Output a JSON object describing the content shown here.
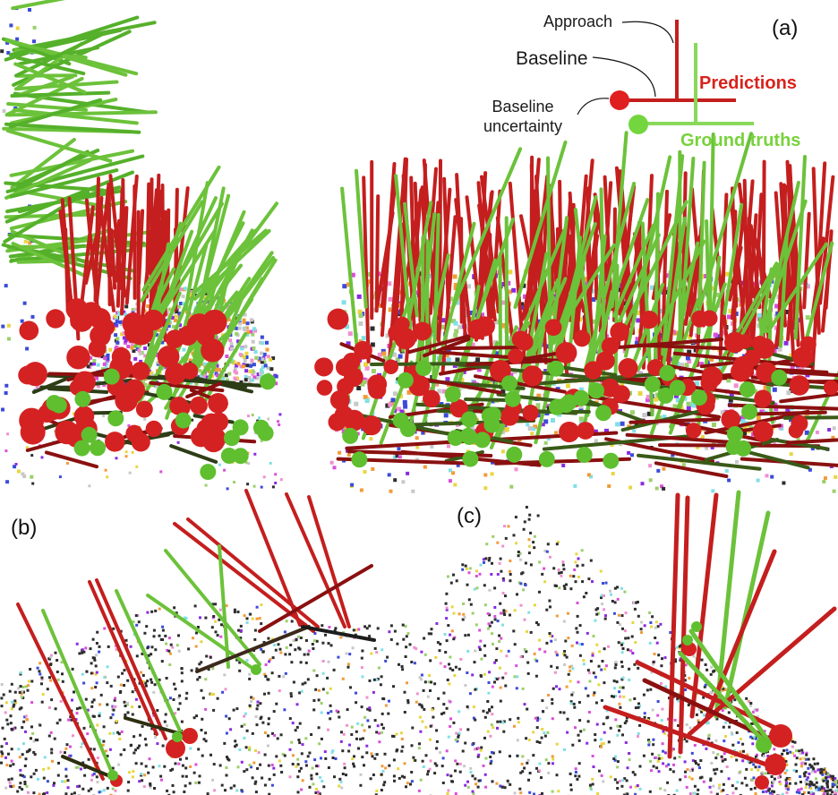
{
  "panels": {
    "a": "(a)",
    "b": "(b)",
    "c": "(c)"
  },
  "legend": {
    "approach": "Approach",
    "baseline": "Baseline",
    "baseline_uncertainty_line1": "Baseline",
    "baseline_uncertainty_line2": "uncertainty",
    "predictions": "Predictions",
    "ground_truths": "Ground truths"
  },
  "colors": {
    "prediction": "#c41e1e",
    "prediction_dark": "#8a1010",
    "ground_truth": "#6cc23a",
    "ground_truth_dark": "#3f8a22",
    "uncertainty_sphere": "#d42222",
    "gt_sphere": "#5fbf2f",
    "point_cloud": [
      "#3b4bd8",
      "#8a2be2",
      "#f08fd0",
      "#7fe0e6",
      "#e8d640",
      "#f29b38",
      "#9bd06a",
      "#c8c8c8",
      "#2d2d2d",
      "#d94fd9"
    ]
  }
}
